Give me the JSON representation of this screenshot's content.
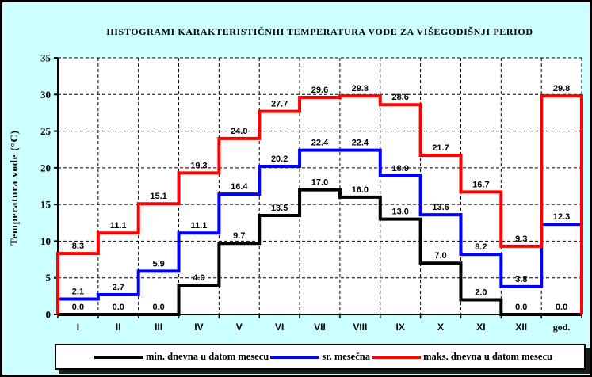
{
  "title": "HISTOGRAMI KARAKTERISTIČNIH TEMPERATURA VODE ZA VIŠEGODIŠNJI PERIOD",
  "colors": {
    "background": "#CCFFFF",
    "plot_background": "#FFFFFF",
    "grid": "#000000",
    "axis": "#000000",
    "label": "#000000",
    "min_series": "#000000",
    "avg_series": "#0000FF",
    "max_series": "#FF0000"
  },
  "chart_data": {
    "type": "line",
    "style": "step-histogram",
    "title": "HISTOGRAMI KARAKTERISTIČNIH TEMPERATURA VODE ZA VIŠEGODIŠNJI PERIOD",
    "xlabel": "",
    "ylabel": "Temperatura vode (°C)",
    "ylim": [
      0,
      35
    ],
    "ytick_step": 5,
    "grid": true,
    "grid_style": "dashed",
    "legend_position": "bottom",
    "categories": [
      "I",
      "II",
      "III",
      "IV",
      "V",
      "VI",
      "VII",
      "VIII",
      "IX",
      "X",
      "XI",
      "XII",
      "god."
    ],
    "series": [
      {
        "name": "min. dnevna u datom mesecu",
        "color": "#000000",
        "start_at_zero": false,
        "end_at_zero": false,
        "values": [
          0.0,
          0.0,
          0.0,
          4.0,
          9.7,
          13.5,
          17.0,
          16.0,
          13.0,
          7.0,
          2.0,
          0.0,
          0.0
        ]
      },
      {
        "name": "sr. mesečna",
        "color": "#0000FF",
        "start_at_zero": false,
        "end_at_zero": false,
        "values": [
          2.1,
          2.7,
          5.9,
          11.1,
          16.4,
          20.2,
          22.4,
          22.4,
          18.9,
          13.6,
          8.2,
          3.8,
          12.3
        ]
      },
      {
        "name": "maks. dnevna u datom mesecu",
        "color": "#FF0000",
        "start_at_zero": true,
        "end_at_zero": true,
        "values": [
          8.3,
          11.1,
          15.1,
          19.3,
          24.0,
          27.7,
          29.6,
          29.8,
          28.6,
          21.7,
          16.7,
          9.3,
          29.8
        ]
      }
    ]
  }
}
